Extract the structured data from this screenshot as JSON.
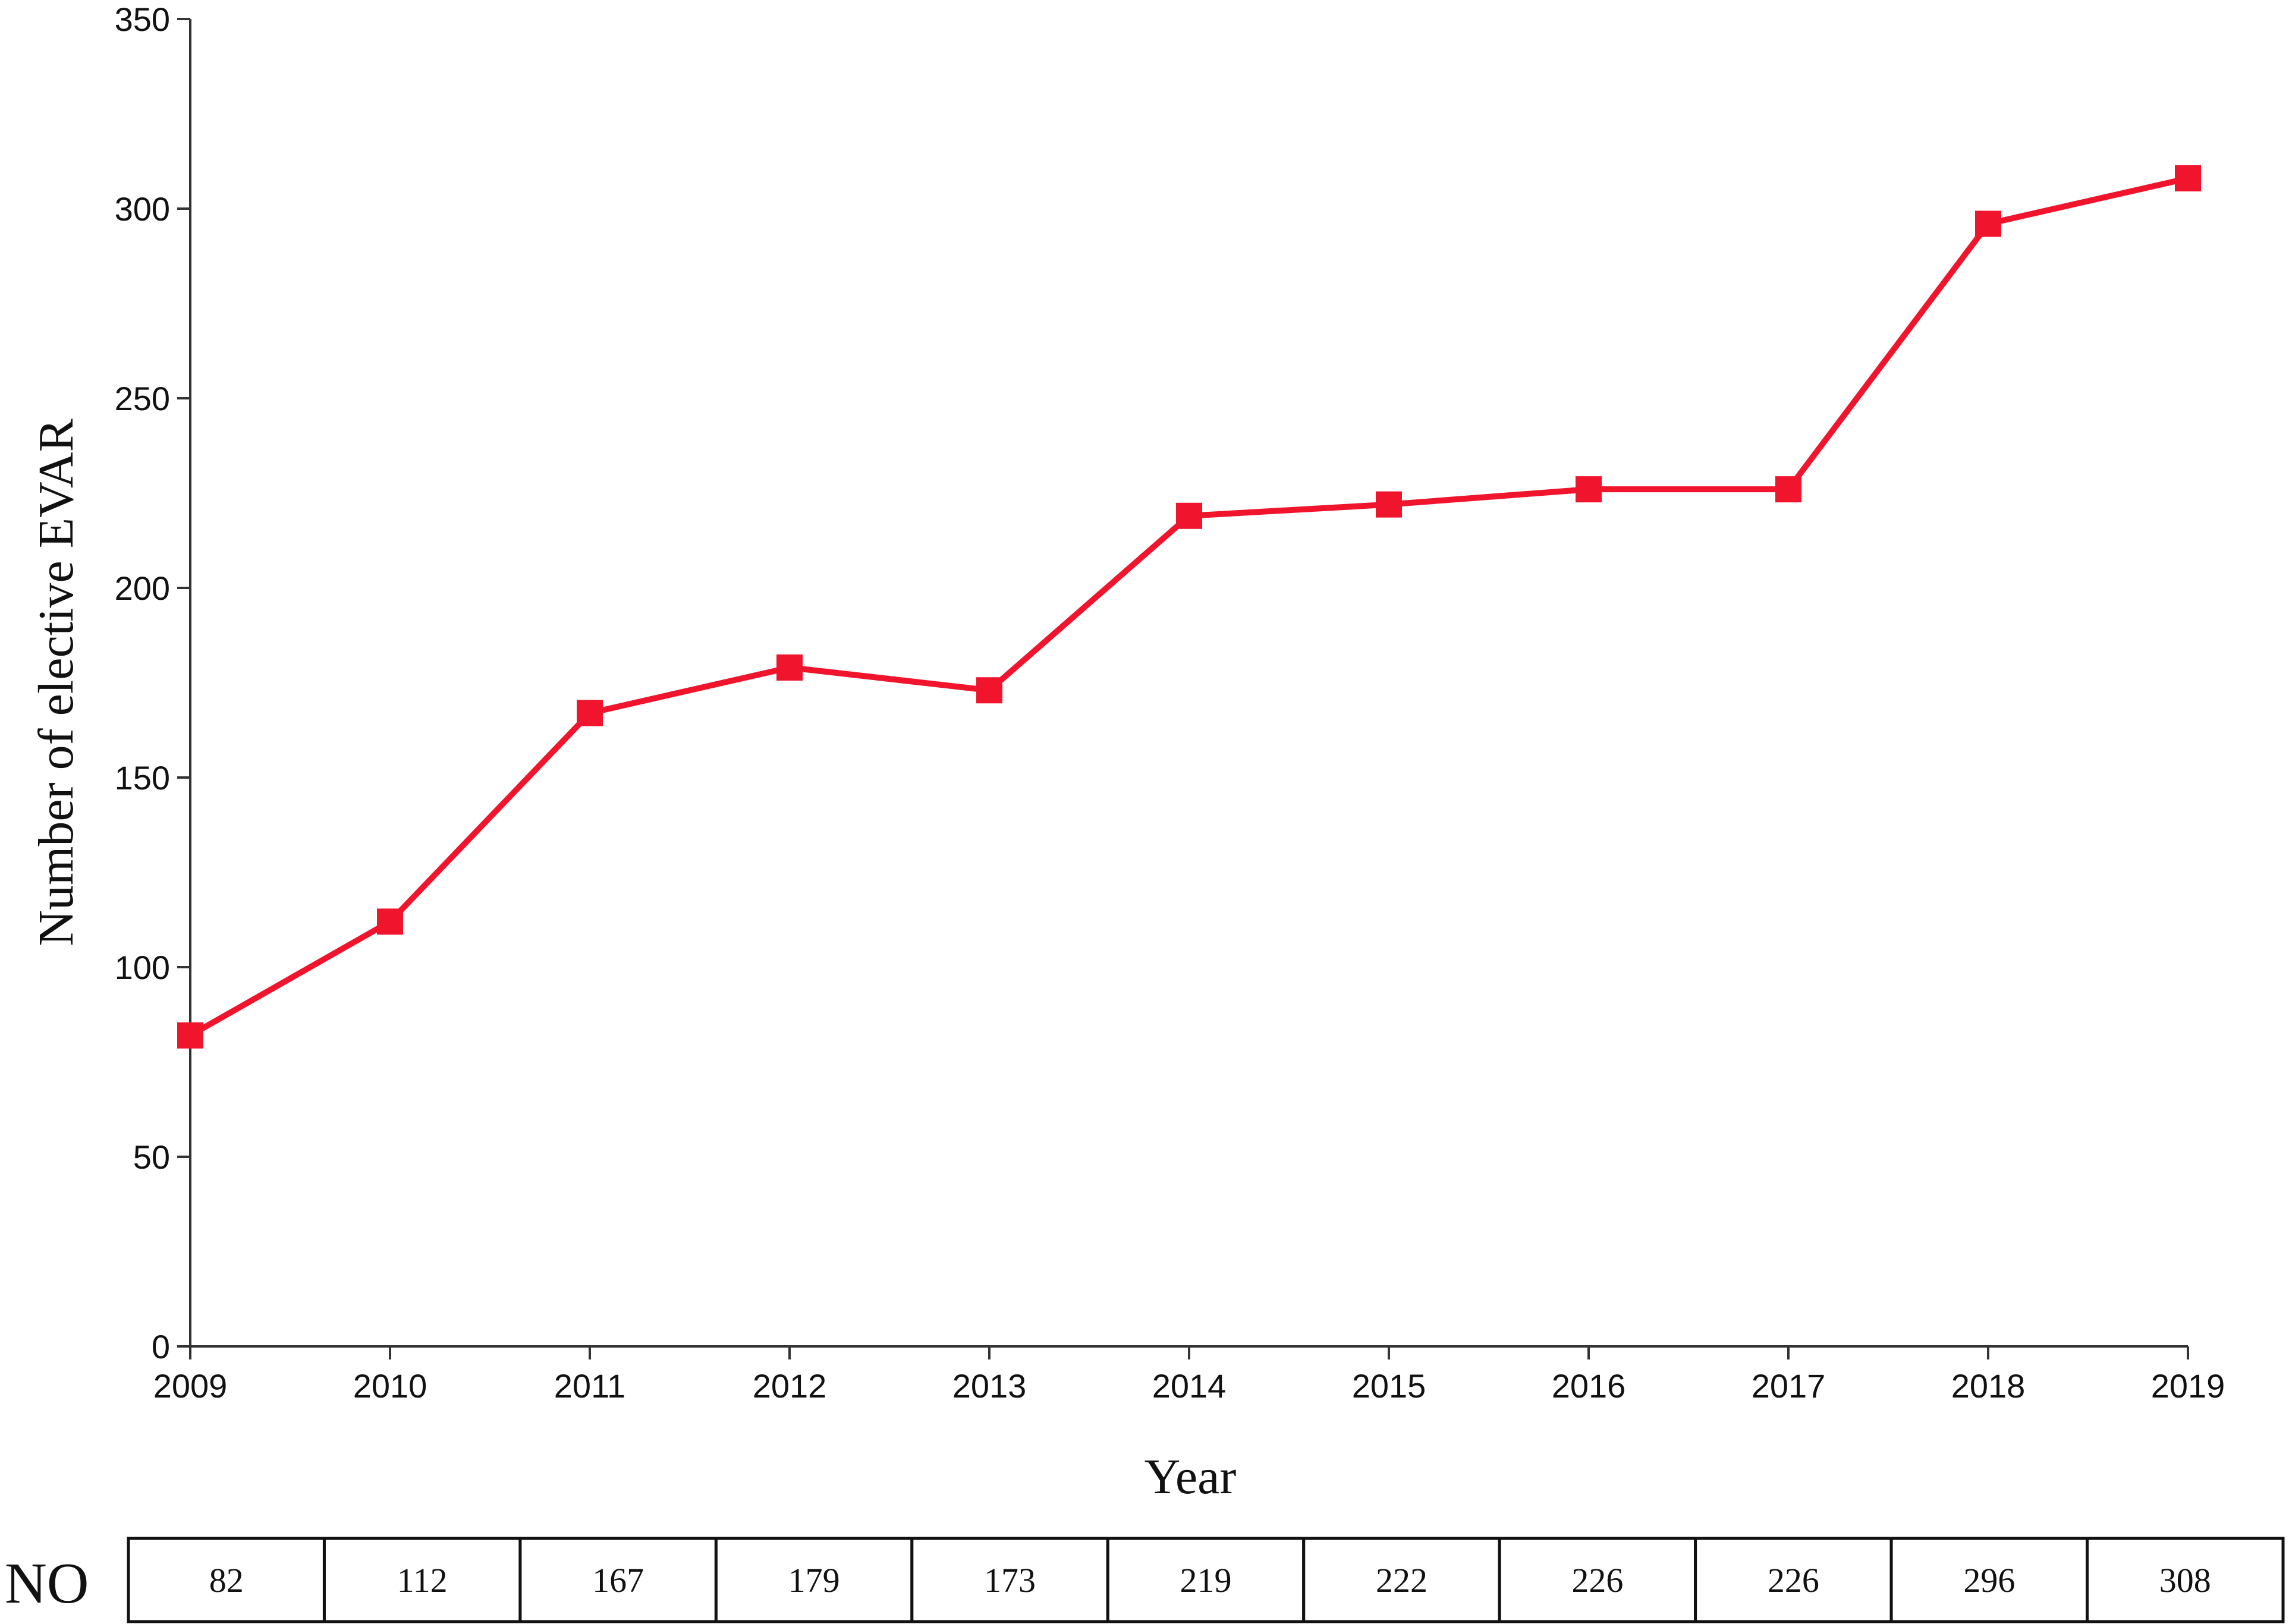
{
  "chart_data": {
    "type": "line",
    "title": "",
    "xlabel": "Year",
    "ylabel": "Number of elective EVAR",
    "x": [
      "2009",
      "2010",
      "2011",
      "2012",
      "2013",
      "2014",
      "2015",
      "2016",
      "2017",
      "2018",
      "2019"
    ],
    "series": [
      {
        "values": [
          82,
          112,
          167,
          179,
          173,
          219,
          222,
          226,
          226,
          296,
          308
        ],
        "color": "#f0142d",
        "marker": "square"
      }
    ],
    "ylim": [
      0,
      350
    ],
    "yticks": [
      "0",
      "50",
      "100",
      "150",
      "200",
      "250",
      "300",
      "350"
    ],
    "grid": false,
    "legend": "none",
    "table": {
      "row_label": "NO",
      "values": [
        "82",
        "112",
        "167",
        "179",
        "173",
        "219",
        "222",
        "226",
        "226",
        "296",
        "308"
      ]
    }
  }
}
